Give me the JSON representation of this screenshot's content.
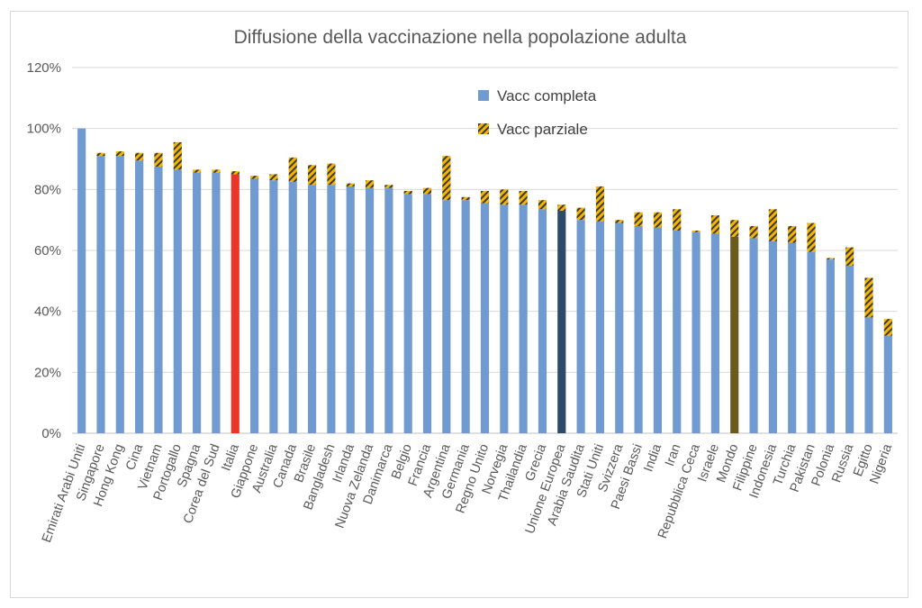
{
  "chart_data": {
    "type": "bar",
    "stacked": true,
    "title": "Diffusione della vaccinazione nella popolazione adulta",
    "xlabel": "",
    "ylabel": "",
    "ylim": [
      0,
      1.2
    ],
    "yticks": [
      0,
      0.2,
      0.4,
      0.6,
      0.8,
      1.0,
      1.2
    ],
    "ytick_labels": [
      "0%",
      "20%",
      "40%",
      "60%",
      "80%",
      "100%",
      "120%"
    ],
    "grid": true,
    "legend_position": "top-center",
    "categories": [
      "Emirati Arabi Uniti",
      "Singapore",
      "Hong Kong",
      "Cina",
      "Vietnam",
      "Portogallo",
      "Spagna",
      "Corea del Sud",
      "Italia",
      "Giappone",
      "Australia",
      "Canada",
      "Brasile",
      "Bangladesh",
      "Irlanda",
      "Nuova Zelanda",
      "Danimarca",
      "Belgio",
      "Francia",
      "Argentina",
      "Germania",
      "Regno Unito",
      "Norvegia",
      "Thailandia",
      "Grecia",
      "Unione Europea",
      "Arabia Saudita",
      "Stati Uniti",
      "Svizzera",
      "Paesi Bassi",
      "India",
      "Iran",
      "Repubblica Ceca",
      "Israele",
      "Mondo",
      "Filippine",
      "Indonesia",
      "Turchia",
      "Pakistan",
      "Polonia",
      "Russia",
      "Egitto",
      "Nigeria"
    ],
    "series": [
      {
        "name": "Vacc completa",
        "color": "#6f9bd1",
        "values": [
          1.0,
          0.91,
          0.91,
          0.895,
          0.875,
          0.865,
          0.855,
          0.855,
          0.85,
          0.835,
          0.83,
          0.825,
          0.815,
          0.815,
          0.81,
          0.805,
          0.805,
          0.785,
          0.785,
          0.765,
          0.765,
          0.755,
          0.75,
          0.75,
          0.735,
          0.73,
          0.7,
          0.695,
          0.69,
          0.68,
          0.675,
          0.665,
          0.66,
          0.655,
          0.645,
          0.64,
          0.63,
          0.625,
          0.595,
          0.57,
          0.55,
          0.38,
          0.32
        ]
      },
      {
        "name": "Vacc parziale",
        "color": "#f4b400",
        "pattern": "hatched",
        "values": [
          0.0,
          0.01,
          0.015,
          0.025,
          0.045,
          0.09,
          0.01,
          0.01,
          0.01,
          0.01,
          0.02,
          0.08,
          0.065,
          0.07,
          0.01,
          0.025,
          0.01,
          0.01,
          0.02,
          0.145,
          0.01,
          0.04,
          0.05,
          0.045,
          0.03,
          0.02,
          0.04,
          0.115,
          0.01,
          0.045,
          0.05,
          0.07,
          0.005,
          0.06,
          0.055,
          0.04,
          0.105,
          0.055,
          0.095,
          0.005,
          0.06,
          0.13,
          0.055
        ]
      }
    ],
    "highlight_colors": {
      "Italia": "#e8372a",
      "Unione Europea": "#2e4a6b",
      "Mondo": "#6b5a1e"
    }
  }
}
